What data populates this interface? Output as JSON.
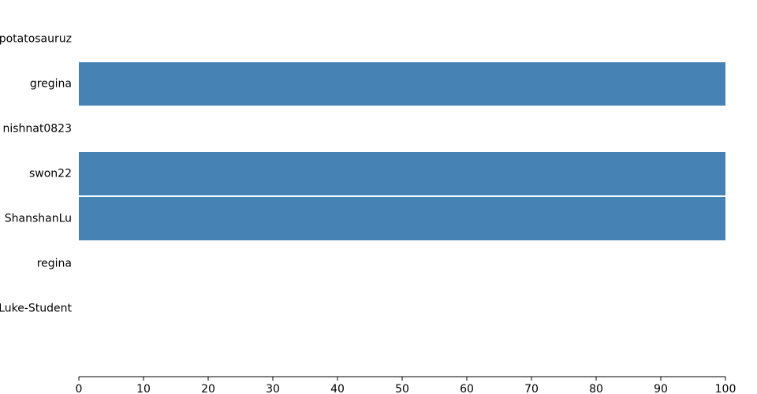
{
  "chart_data": {
    "type": "bar",
    "orientation": "horizontal",
    "title": "",
    "xlabel": "",
    "ylabel": "",
    "categories": [
      "potatosauruz",
      "gregina",
      "nishnat0823",
      "swon22",
      "ShanshanLu",
      "regina",
      "Luke-Student"
    ],
    "values": [
      0,
      100,
      0,
      100,
      100,
      0,
      0
    ],
    "xlim": [
      0,
      100
    ],
    "x_ticks": [
      0,
      10,
      20,
      30,
      40,
      50,
      60,
      70,
      80,
      90,
      100
    ],
    "grid": false,
    "legend": "none",
    "bar_color": "#4682b4"
  }
}
